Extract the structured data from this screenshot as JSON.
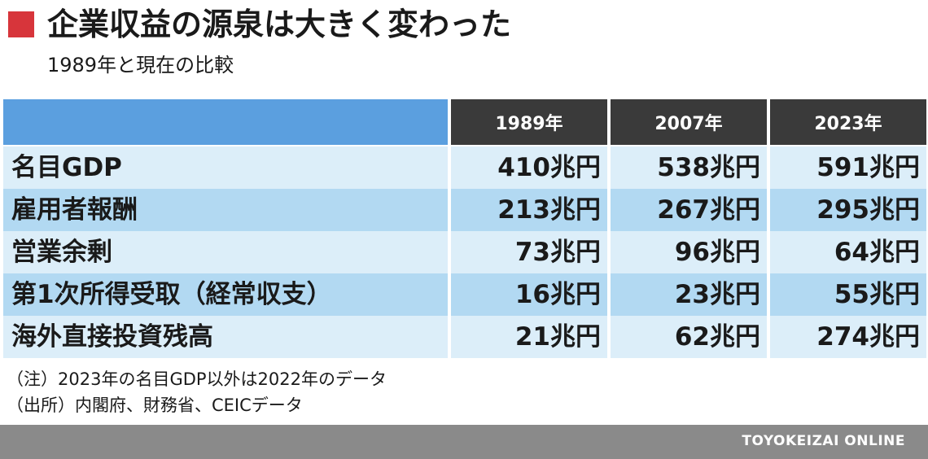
{
  "title": "企業収益の源泉は大きく変わった",
  "subtitle": "1989年と現在の比較",
  "colors": {
    "accent": "#d7353b",
    "header_blue": "#5b9fdf",
    "header_dark": "#3a3a3a",
    "row_light": "#dceef9",
    "row_dark": "#b2d9f2",
    "footer": "#8a8a8a"
  },
  "chart_data": {
    "type": "table",
    "columns": [
      "1989年",
      "2007年",
      "2023年"
    ],
    "rows": [
      {
        "label": "名目GDP",
        "values": [
          "410兆円",
          "538兆円",
          "591兆円"
        ]
      },
      {
        "label": "雇用者報酬",
        "values": [
          "213兆円",
          "267兆円",
          "295兆円"
        ]
      },
      {
        "label": "営業余剰",
        "values": [
          "73兆円",
          "96兆円",
          "64兆円"
        ]
      },
      {
        "label": "第1次所得受取（経常収支）",
        "values": [
          "16兆円",
          "23兆円",
          "55兆円"
        ]
      },
      {
        "label": "海外直接投資残高",
        "values": [
          "21兆円",
          "62兆円",
          "274兆円"
        ]
      }
    ]
  },
  "notes": {
    "note": "（注）2023年の名目GDP以外は2022年のデータ",
    "source": "（出所）内閣府、財務省、CEICデータ"
  },
  "footer": {
    "brand": "TOYOKEIZAI ONLINE"
  }
}
